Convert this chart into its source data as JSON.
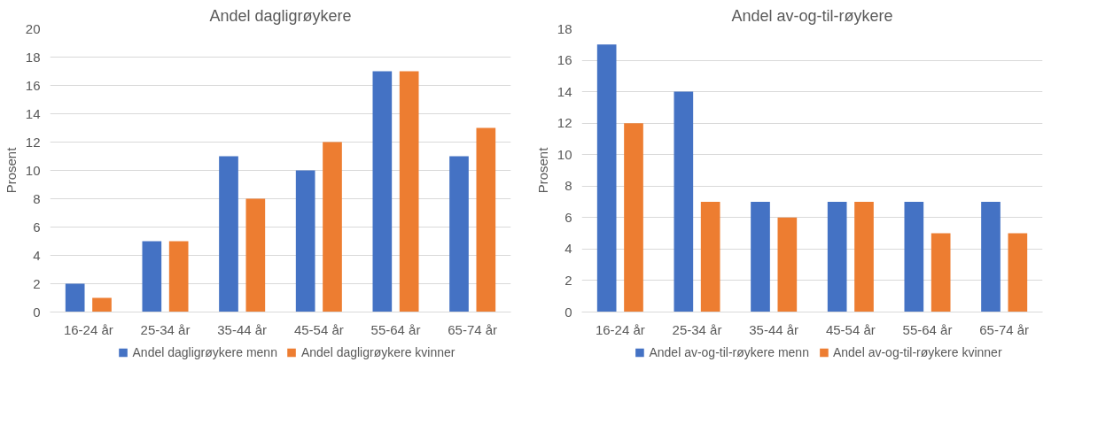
{
  "chart_data": [
    {
      "type": "bar",
      "title": "Andel dagligrøykere",
      "ylabel": "Prosent",
      "categories": [
        "16-24 år",
        "25-34 år",
        "35-44 år",
        "45-54 år",
        "55-64 år",
        "65-74 år"
      ],
      "series": [
        {
          "name": "Andel dagligrøykere menn",
          "color": "#4472c4",
          "values": [
            2,
            5,
            11,
            10,
            17,
            11
          ]
        },
        {
          "name": "Andel dagligrøykere kvinner",
          "color": "#ed7d31",
          "values": [
            1,
            5,
            8,
            12,
            17,
            13
          ]
        }
      ],
      "ylim": [
        0,
        20
      ],
      "yticks": [
        0,
        2,
        4,
        6,
        8,
        10,
        12,
        14,
        16,
        18,
        20
      ],
      "grid": "y",
      "legend": "bottom"
    },
    {
      "type": "bar",
      "title": "Andel av-og-til-røykere",
      "ylabel": "Prosent",
      "categories": [
        "16-24 år",
        "25-34 år",
        "35-44 år",
        "45-54 år",
        "55-64 år",
        "65-74 år"
      ],
      "series": [
        {
          "name": "Andel av-og-til-røykere menn",
          "color": "#4472c4",
          "values": [
            17,
            14,
            7,
            7,
            7,
            7
          ]
        },
        {
          "name": "Andel av-og-til-røykere kvinner",
          "color": "#ed7d31",
          "values": [
            12,
            7,
            6,
            7,
            5,
            5
          ]
        }
      ],
      "ylim": [
        0,
        18
      ],
      "yticks": [
        0,
        2,
        4,
        6,
        8,
        10,
        12,
        14,
        16,
        18
      ],
      "grid": "y",
      "legend": "bottom"
    }
  ]
}
